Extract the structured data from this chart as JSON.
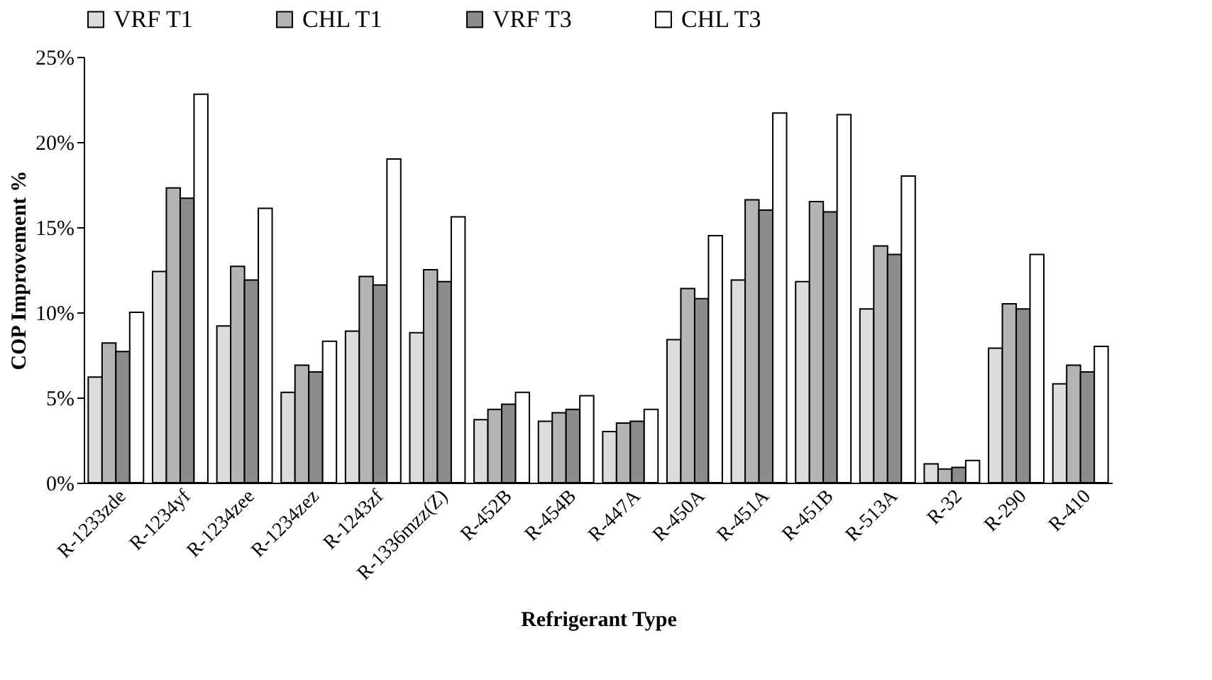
{
  "chart_data": {
    "type": "bar",
    "xlabel": "Refrigerant Type",
    "ylabel": "COP Improvement %",
    "categories": [
      "R-1233zde",
      "R-1234yf",
      "R-1234zee",
      "R-1234zez",
      "R-1243zf",
      "R-1336mzz(Z)",
      "R-452B",
      "R-454B",
      "R-447A",
      "R-450A",
      "R-451A",
      "R-451B",
      "R-513A",
      "R-32",
      "R-290",
      "R-410"
    ],
    "series": [
      {
        "name": "VRF T1",
        "color": "#dcdcdc",
        "values": [
          6.2,
          12.4,
          9.2,
          5.3,
          8.9,
          8.8,
          3.7,
          3.6,
          3.0,
          8.4,
          11.9,
          11.8,
          10.2,
          1.1,
          7.9,
          5.8
        ]
      },
      {
        "name": "CHL T1",
        "color": "#b4b4b4",
        "values": [
          8.2,
          17.3,
          12.7,
          6.9,
          12.1,
          12.5,
          4.3,
          4.1,
          3.5,
          11.4,
          16.6,
          16.5,
          13.9,
          0.8,
          10.5,
          6.9
        ]
      },
      {
        "name": "VRF T3",
        "color": "#8c8c8c",
        "values": [
          7.7,
          16.7,
          11.9,
          6.5,
          11.6,
          11.8,
          4.6,
          4.3,
          3.6,
          10.8,
          16.0,
          15.9,
          13.4,
          0.9,
          10.2,
          6.5
        ]
      },
      {
        "name": "CHL T3",
        "color": "#ffffff",
        "values": [
          10.0,
          22.8,
          16.1,
          8.3,
          19.0,
          15.6,
          5.3,
          5.1,
          4.3,
          14.5,
          21.7,
          21.6,
          18.0,
          1.3,
          13.4,
          8.0
        ]
      }
    ],
    "ylim": [
      0,
      25
    ],
    "yticks": [
      {
        "value": 0,
        "label": "0%"
      },
      {
        "value": 5,
        "label": "5%"
      },
      {
        "value": 10,
        "label": "10%"
      },
      {
        "value": 15,
        "label": "15%"
      },
      {
        "value": 20,
        "label": "20%"
      },
      {
        "value": 25,
        "label": "25%"
      }
    ],
    "legend": "top",
    "grid": false
  }
}
